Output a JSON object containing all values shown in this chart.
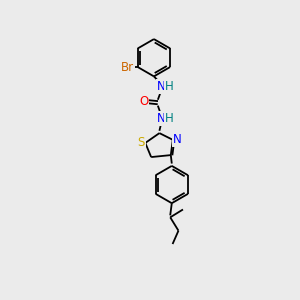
{
  "background_color": "#ebebeb",
  "bond_color": "#000000",
  "atoms": {
    "Br": {
      "color": "#cc6600"
    },
    "N": {
      "color": "#0000ff"
    },
    "O": {
      "color": "#ff0000"
    },
    "S": {
      "color": "#ccaa00"
    },
    "H": {
      "color": "#008080"
    }
  },
  "figsize": [
    3.0,
    3.0
  ],
  "dpi": 100
}
